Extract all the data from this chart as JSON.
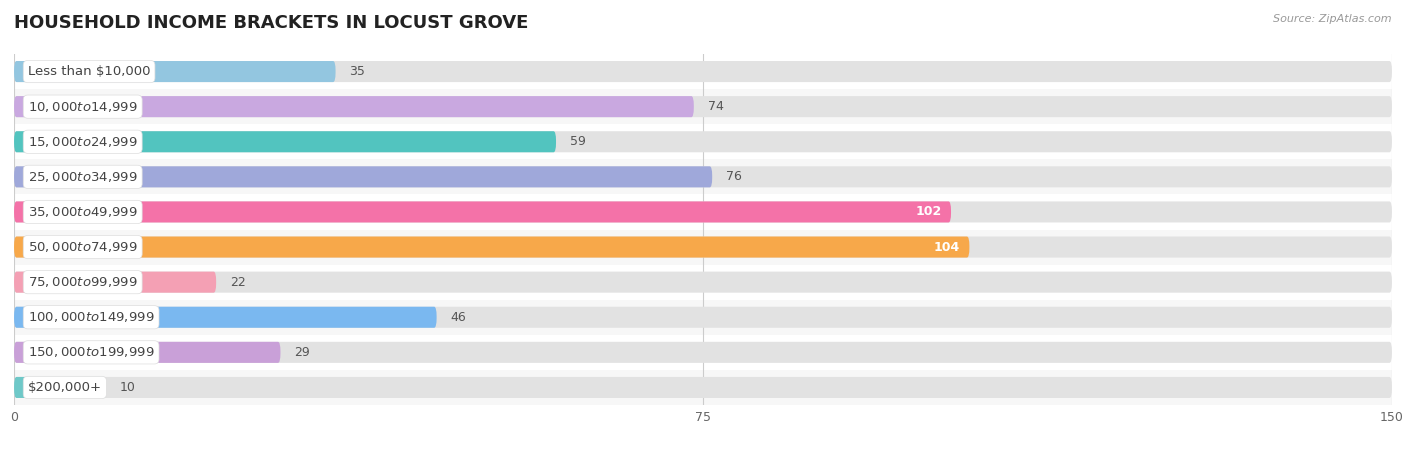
{
  "title": "HOUSEHOLD INCOME BRACKETS IN LOCUST GROVE",
  "source": "Source: ZipAtlas.com",
  "categories": [
    "Less than $10,000",
    "$10,000 to $14,999",
    "$15,000 to $24,999",
    "$25,000 to $34,999",
    "$35,000 to $49,999",
    "$50,000 to $74,999",
    "$75,000 to $99,999",
    "$100,000 to $149,999",
    "$150,000 to $199,999",
    "$200,000+"
  ],
  "values": [
    35,
    74,
    59,
    76,
    102,
    104,
    22,
    46,
    29,
    10
  ],
  "bar_colors": [
    "#93c6e0",
    "#c9a8e0",
    "#52c4bf",
    "#9fa8da",
    "#f472a8",
    "#f7a84a",
    "#f4a0b4",
    "#7ab8f0",
    "#c9a0d8",
    "#6ec8c8"
  ],
  "xlim": [
    0,
    150
  ],
  "xticks": [
    0,
    75,
    150
  ],
  "row_bg_even": "#f7f7f7",
  "row_bg_odd": "#ffffff",
  "bar_bg_color": "#e2e2e2",
  "title_fontsize": 13,
  "label_fontsize": 9.5,
  "value_fontsize": 9
}
